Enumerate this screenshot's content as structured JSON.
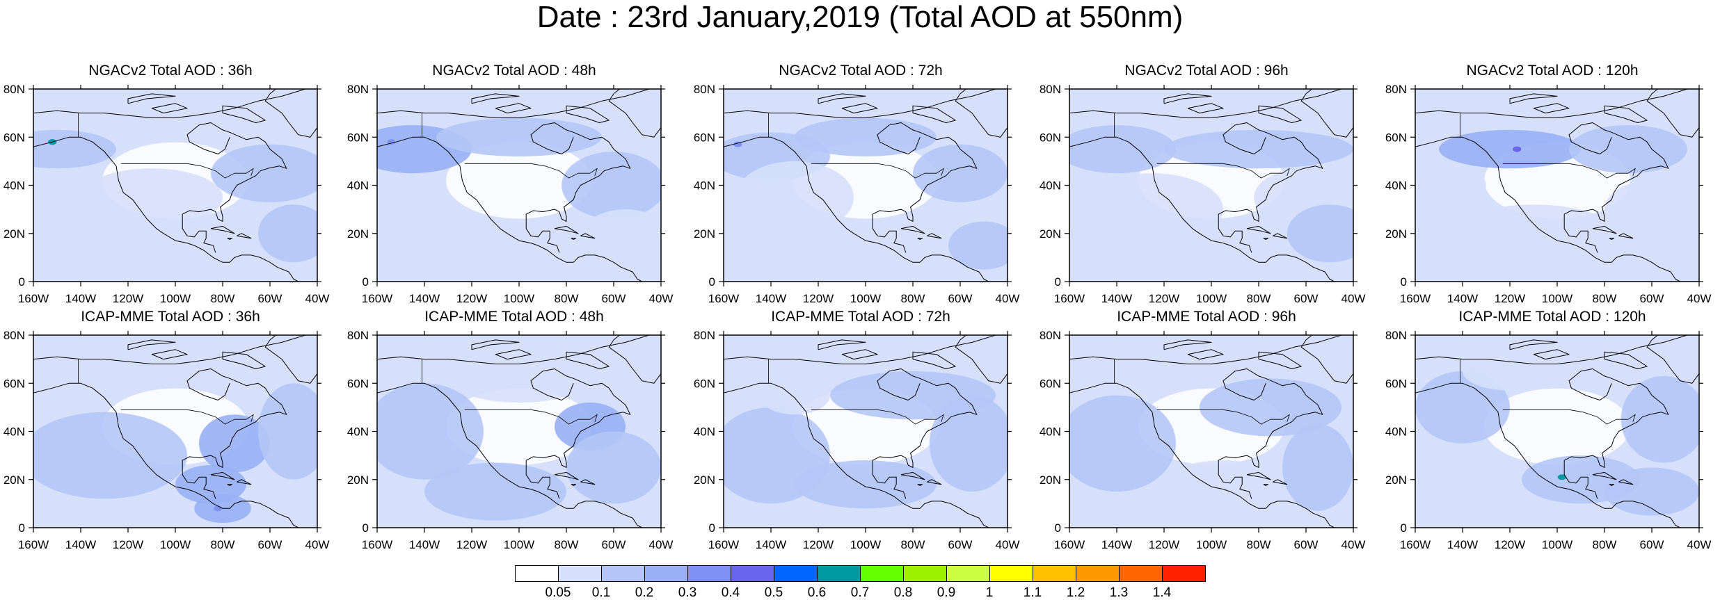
{
  "title": "Date : 23rd January,2019 (Total AOD at 550nm)",
  "panels": [
    {
      "title": "NGACv2 Total AOD : 36h",
      "model": "NGACv2",
      "lead": "36h",
      "hotspots": [
        {
          "lon": -152,
          "lat": 58,
          "level": 5
        },
        {
          "lon": -152,
          "lat": 58,
          "level": 7
        }
      ]
    },
    {
      "title": "NGACv2 Total AOD : 48h",
      "model": "NGACv2",
      "lead": "48h",
      "hotspots": [
        {
          "lon": -154,
          "lat": 58,
          "level": 4
        }
      ]
    },
    {
      "title": "NGACv2 Total AOD : 72h",
      "model": "NGACv2",
      "lead": "72h",
      "hotspots": [
        {
          "lon": -154,
          "lat": 57,
          "level": 4
        }
      ]
    },
    {
      "title": "NGACv2 Total AOD : 96h",
      "model": "NGACv2",
      "lead": "96h",
      "hotspots": []
    },
    {
      "title": "NGACv2 Total AOD : 120h",
      "model": "NGACv2",
      "lead": "120h",
      "hotspots": [
        {
          "lon": -117,
          "lat": 55,
          "level": 5
        }
      ]
    },
    {
      "title": "ICAP-MME Total AOD : 36h",
      "model": "ICAP-MME",
      "lead": "36h",
      "hotspots": [
        {
          "lon": -82,
          "lat": 8,
          "level": 4
        }
      ]
    },
    {
      "title": "ICAP-MME Total AOD : 48h",
      "model": "ICAP-MME",
      "lead": "48h",
      "hotspots": []
    },
    {
      "title": "ICAP-MME Total AOD : 72h",
      "model": "ICAP-MME",
      "lead": "72h",
      "hotspots": []
    },
    {
      "title": "ICAP-MME Total AOD : 96h",
      "model": "ICAP-MME",
      "lead": "96h",
      "hotspots": []
    },
    {
      "title": "ICAP-MME Total AOD : 120h",
      "model": "ICAP-MME",
      "lead": "120h",
      "hotspots": [
        {
          "lon": -98,
          "lat": 21,
          "level": 7
        }
      ]
    }
  ],
  "axes": {
    "x_ticks": [
      "160W",
      "140W",
      "120W",
      "100W",
      "80W",
      "60W",
      "40W"
    ],
    "x_values": [
      -160,
      -140,
      -120,
      -100,
      -80,
      -60,
      -40
    ],
    "y_ticks": [
      "0",
      "20N",
      "40N",
      "60N",
      "80N"
    ],
    "y_values": [
      0,
      20,
      40,
      60,
      80
    ],
    "lon_range": [
      -160,
      -40
    ],
    "lat_range": [
      0,
      80
    ]
  },
  "colorbar": {
    "labels": [
      "0.05",
      "0.1",
      "0.2",
      "0.3",
      "0.4",
      "0.5",
      "0.6",
      "0.7",
      "0.8",
      "0.9",
      "1",
      "1.1",
      "1.2",
      "1.3",
      "1.4"
    ],
    "colors": [
      "#ffffff",
      "#d6e0fb",
      "#b4c6f7",
      "#98b0f5",
      "#7f92f3",
      "#6a64ef",
      "#0066ff",
      "#009aa3",
      "#66ff00",
      "#9cf000",
      "#ccff44",
      "#ffff00",
      "#ffc000",
      "#ff9900",
      "#ff6600",
      "#ff2000"
    ]
  }
}
